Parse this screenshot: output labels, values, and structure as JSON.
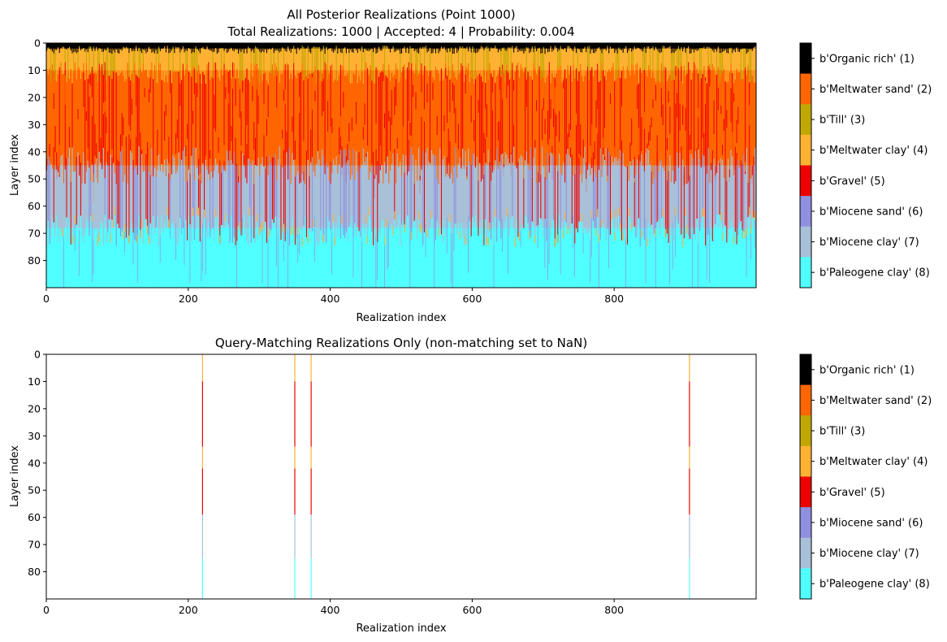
{
  "chart_data": [
    {
      "type": "heatmap",
      "title": "All Posterior Realizations (Point 1000)",
      "subtitle": "Total Realizations: 1000 | Accepted: 4 | Probability: 0.004",
      "xlabel": "Realization index",
      "ylabel": "Layer index",
      "xlim": [
        0,
        1000
      ],
      "ylim": [
        90,
        0
      ],
      "xticks": [
        0,
        200,
        400,
        600,
        800
      ],
      "yticks": [
        0,
        10,
        20,
        30,
        40,
        50,
        60,
        70,
        80
      ],
      "n_realizations": 1000,
      "n_layers": 90,
      "dominant_profile": [
        {
          "from_layer": 0,
          "to_layer": 2,
          "class": 1
        },
        {
          "from_layer": 2,
          "to_layer": 10,
          "class": 4
        },
        {
          "from_layer": 10,
          "to_layer": 20,
          "class": 2
        },
        {
          "from_layer": 20,
          "to_layer": 45,
          "class": 2
        },
        {
          "from_layer": 45,
          "to_layer": 68,
          "class": 7
        },
        {
          "from_layer": 68,
          "to_layer": 90,
          "class": 8
        }
      ]
    },
    {
      "type": "heatmap",
      "title": "Query-Matching Realizations Only (non-matching set to NaN)",
      "xlabel": "Realization index",
      "ylabel": "Layer index",
      "xlim": [
        0,
        1000
      ],
      "ylim": [
        90,
        0
      ],
      "xticks": [
        0,
        200,
        400,
        600,
        800
      ],
      "yticks": [
        0,
        10,
        20,
        30,
        40,
        50,
        60,
        70,
        80
      ],
      "matching_realizations": [
        220,
        350,
        373,
        906
      ],
      "matching_profile": [
        {
          "from_layer": 0,
          "to_layer": 10,
          "class": 4
        },
        {
          "from_layer": 10,
          "to_layer": 34,
          "class": 5
        },
        {
          "from_layer": 34,
          "to_layer": 42,
          "class": 4
        },
        {
          "from_layer": 42,
          "to_layer": 59,
          "class": 5
        },
        {
          "from_layer": 59,
          "to_layer": 75,
          "class": 7
        },
        {
          "from_layer": 75,
          "to_layer": 90,
          "class": 8
        }
      ]
    }
  ],
  "legend": {
    "classes": [
      {
        "id": 1,
        "label": "b'Organic rich' (1)",
        "color": "#000000"
      },
      {
        "id": 2,
        "label": "b'Meltwater sand' (2)",
        "color": "#ff6600"
      },
      {
        "id": 3,
        "label": "b'Till' (3)",
        "color": "#c0a800"
      },
      {
        "id": 4,
        "label": "b'Meltwater clay' (4)",
        "color": "#ffb232"
      },
      {
        "id": 5,
        "label": "b'Gravel' (5)",
        "color": "#ee0000"
      },
      {
        "id": 6,
        "label": "b'Miocene sand' (6)",
        "color": "#9090e0"
      },
      {
        "id": 7,
        "label": "b'Miocene clay' (7)",
        "color": "#a8c0d8"
      },
      {
        "id": 8,
        "label": "b'Paleogene clay' (8)",
        "color": "#50ffff"
      }
    ]
  }
}
